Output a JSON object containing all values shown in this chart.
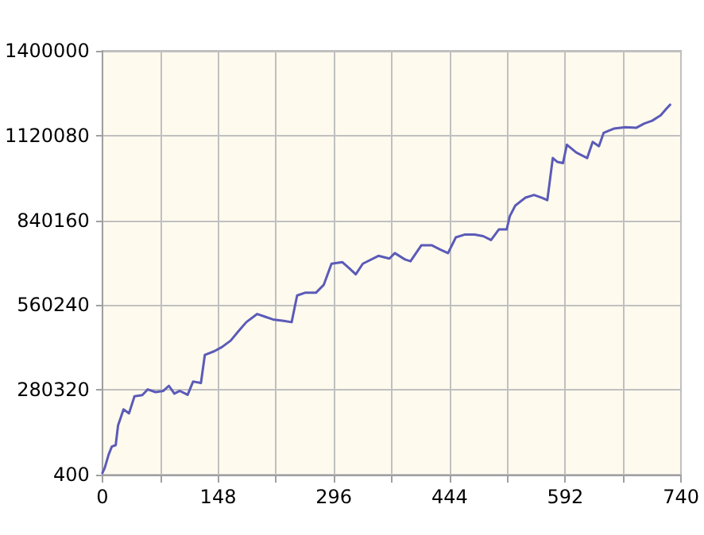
{
  "chart_data": {
    "type": "line",
    "x": [
      0,
      3,
      8,
      12,
      17,
      20,
      27,
      34,
      41,
      51,
      58,
      68,
      78,
      85,
      92,
      99,
      109,
      116,
      126,
      131,
      143,
      153,
      164,
      174,
      184,
      198,
      208,
      218,
      232,
      242,
      249,
      259,
      273,
      283,
      293,
      307,
      317,
      324,
      333,
      353,
      367,
      374,
      387,
      394,
      408,
      421,
      432,
      442,
      452,
      463,
      476,
      487,
      497,
      507,
      517,
      521,
      528,
      541,
      552,
      562,
      569,
      576,
      582,
      589,
      594,
      606,
      620,
      627,
      635,
      641,
      654,
      669,
      683,
      693,
      703,
      714,
      721,
      726
    ],
    "series": [
      {
        "color": "#5b5bb8",
        "values": [
          6000,
          23000,
          67000,
          93000,
          98000,
          163000,
          216000,
          203000,
          259000,
          263000,
          282000,
          273000,
          277000,
          294000,
          268000,
          277000,
          264000,
          308000,
          303000,
          396000,
          408000,
          422000,
          443000,
          474000,
          504000,
          531000,
          522000,
          513000,
          508000,
          504000,
          592000,
          601000,
          601000,
          627000,
          697000,
          702000,
          679000,
          662000,
          697000,
          723000,
          714000,
          732000,
          711000,
          705000,
          758000,
          758000,
          744000,
          732000,
          784000,
          793000,
          793000,
          788000,
          775000,
          810000,
          810000,
          854000,
          889000,
          915000,
          924000,
          915000,
          907000,
          1046000,
          1033000,
          1029000,
          1090000,
          1064000,
          1046000,
          1099000,
          1085000,
          1129000,
          1143000,
          1148000,
          1146000,
          1160000,
          1169000,
          1187000,
          1208000,
          1222000
        ]
      }
    ],
    "xlim": [
      0,
      740
    ],
    "xticks": [
      0,
      {
        "value": 74,
        "label": null
      },
      148,
      {
        "value": 222,
        "label": null
      },
      296,
      {
        "value": 370,
        "label": null
      },
      444,
      {
        "value": 518,
        "label": null
      },
      592,
      {
        "value": 666,
        "label": null
      },
      740
    ],
    "ylim": [
      400,
      1400000
    ],
    "yticks": [
      400,
      280320,
      560240,
      840160,
      1120080,
      1400000
    ],
    "grid": true,
    "marker": "none",
    "line_style": "solid"
  }
}
